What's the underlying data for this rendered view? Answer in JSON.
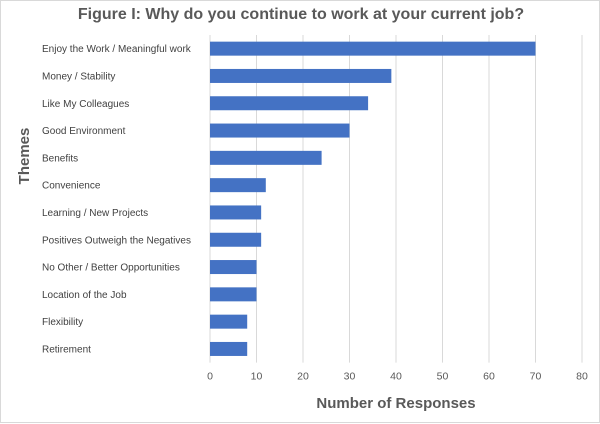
{
  "chart_data": {
    "type": "bar",
    "orientation": "horizontal",
    "title": "Figure I: Why do you continue to work at your current job?",
    "xlabel": "Number of Responses",
    "ylabel": "Themes",
    "categories": [
      "Enjoy the Work / Meaningful work",
      "Money / Stability",
      "Like My Colleagues",
      "Good Environment",
      "Benefits",
      "Convenience",
      "Learning / New Projects",
      "Positives Outweigh the Negatives",
      "No Other / Better Opportunities",
      "Location of the Job",
      "Flexibility",
      "Retirement"
    ],
    "values": [
      70,
      39,
      34,
      30,
      24,
      12,
      11,
      11,
      10,
      10,
      8,
      8
    ],
    "xlim": [
      0,
      80
    ],
    "xticks": [
      0,
      10,
      20,
      30,
      40,
      50,
      60,
      70,
      80
    ],
    "grid": true,
    "legend": "none",
    "bar_color": "#4472c4"
  }
}
